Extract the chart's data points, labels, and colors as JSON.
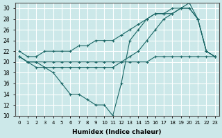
{
  "xlabel": "Humidex (Indice chaleur)",
  "xlim": [
    -0.5,
    23.5
  ],
  "ylim": [
    10,
    31
  ],
  "yticks": [
    10,
    12,
    14,
    16,
    18,
    20,
    22,
    24,
    26,
    28,
    30
  ],
  "xticks": [
    0,
    1,
    2,
    3,
    4,
    5,
    6,
    7,
    8,
    9,
    10,
    11,
    12,
    13,
    14,
    15,
    16,
    17,
    18,
    19,
    20,
    21,
    22,
    23
  ],
  "bg_color": "#cce8e8",
  "line_color": "#1a6666",
  "grid_color": "#ffffff",
  "series": [
    {
      "x": [
        0,
        1,
        2,
        3,
        4,
        5,
        6,
        7,
        8,
        9,
        10,
        11,
        12,
        13,
        14,
        15,
        16,
        17,
        18,
        19,
        20,
        21,
        22,
        23
      ],
      "y": [
        21,
        20,
        19,
        19,
        18,
        16,
        14,
        14,
        13,
        12,
        12,
        10,
        16,
        24,
        26,
        28,
        29,
        29,
        29,
        30,
        31,
        28,
        22,
        21
      ]
    },
    {
      "x": [
        0,
        1,
        2,
        3,
        4,
        5,
        6,
        7,
        8,
        9,
        10,
        11,
        12,
        13,
        14,
        15,
        16,
        17,
        18,
        19,
        20,
        21,
        22,
        23
      ],
      "y": [
        21,
        20,
        20,
        19,
        19,
        19,
        19,
        19,
        19,
        19,
        19,
        19,
        20,
        21,
        22,
        24,
        26,
        28,
        29,
        30,
        30,
        28,
        22,
        21
      ]
    },
    {
      "x": [
        0,
        1,
        2,
        3,
        4,
        5,
        6,
        7,
        8,
        9,
        10,
        11,
        12,
        13,
        14,
        15,
        16,
        17,
        18,
        19,
        20,
        21,
        22,
        23
      ],
      "y": [
        22,
        21,
        21,
        22,
        22,
        22,
        22,
        23,
        23,
        24,
        24,
        24,
        25,
        26,
        27,
        28,
        29,
        29,
        30,
        30,
        30,
        28,
        22,
        21
      ]
    },
    {
      "x": [
        0,
        1,
        2,
        3,
        4,
        5,
        6,
        7,
        8,
        9,
        10,
        11,
        12,
        13,
        14,
        15,
        16,
        17,
        18,
        19,
        20,
        21,
        22,
        23
      ],
      "y": [
        21,
        20,
        20,
        20,
        20,
        20,
        20,
        20,
        20,
        20,
        20,
        20,
        20,
        20,
        20,
        20,
        21,
        21,
        21,
        21,
        21,
        21,
        21,
        21
      ]
    }
  ]
}
